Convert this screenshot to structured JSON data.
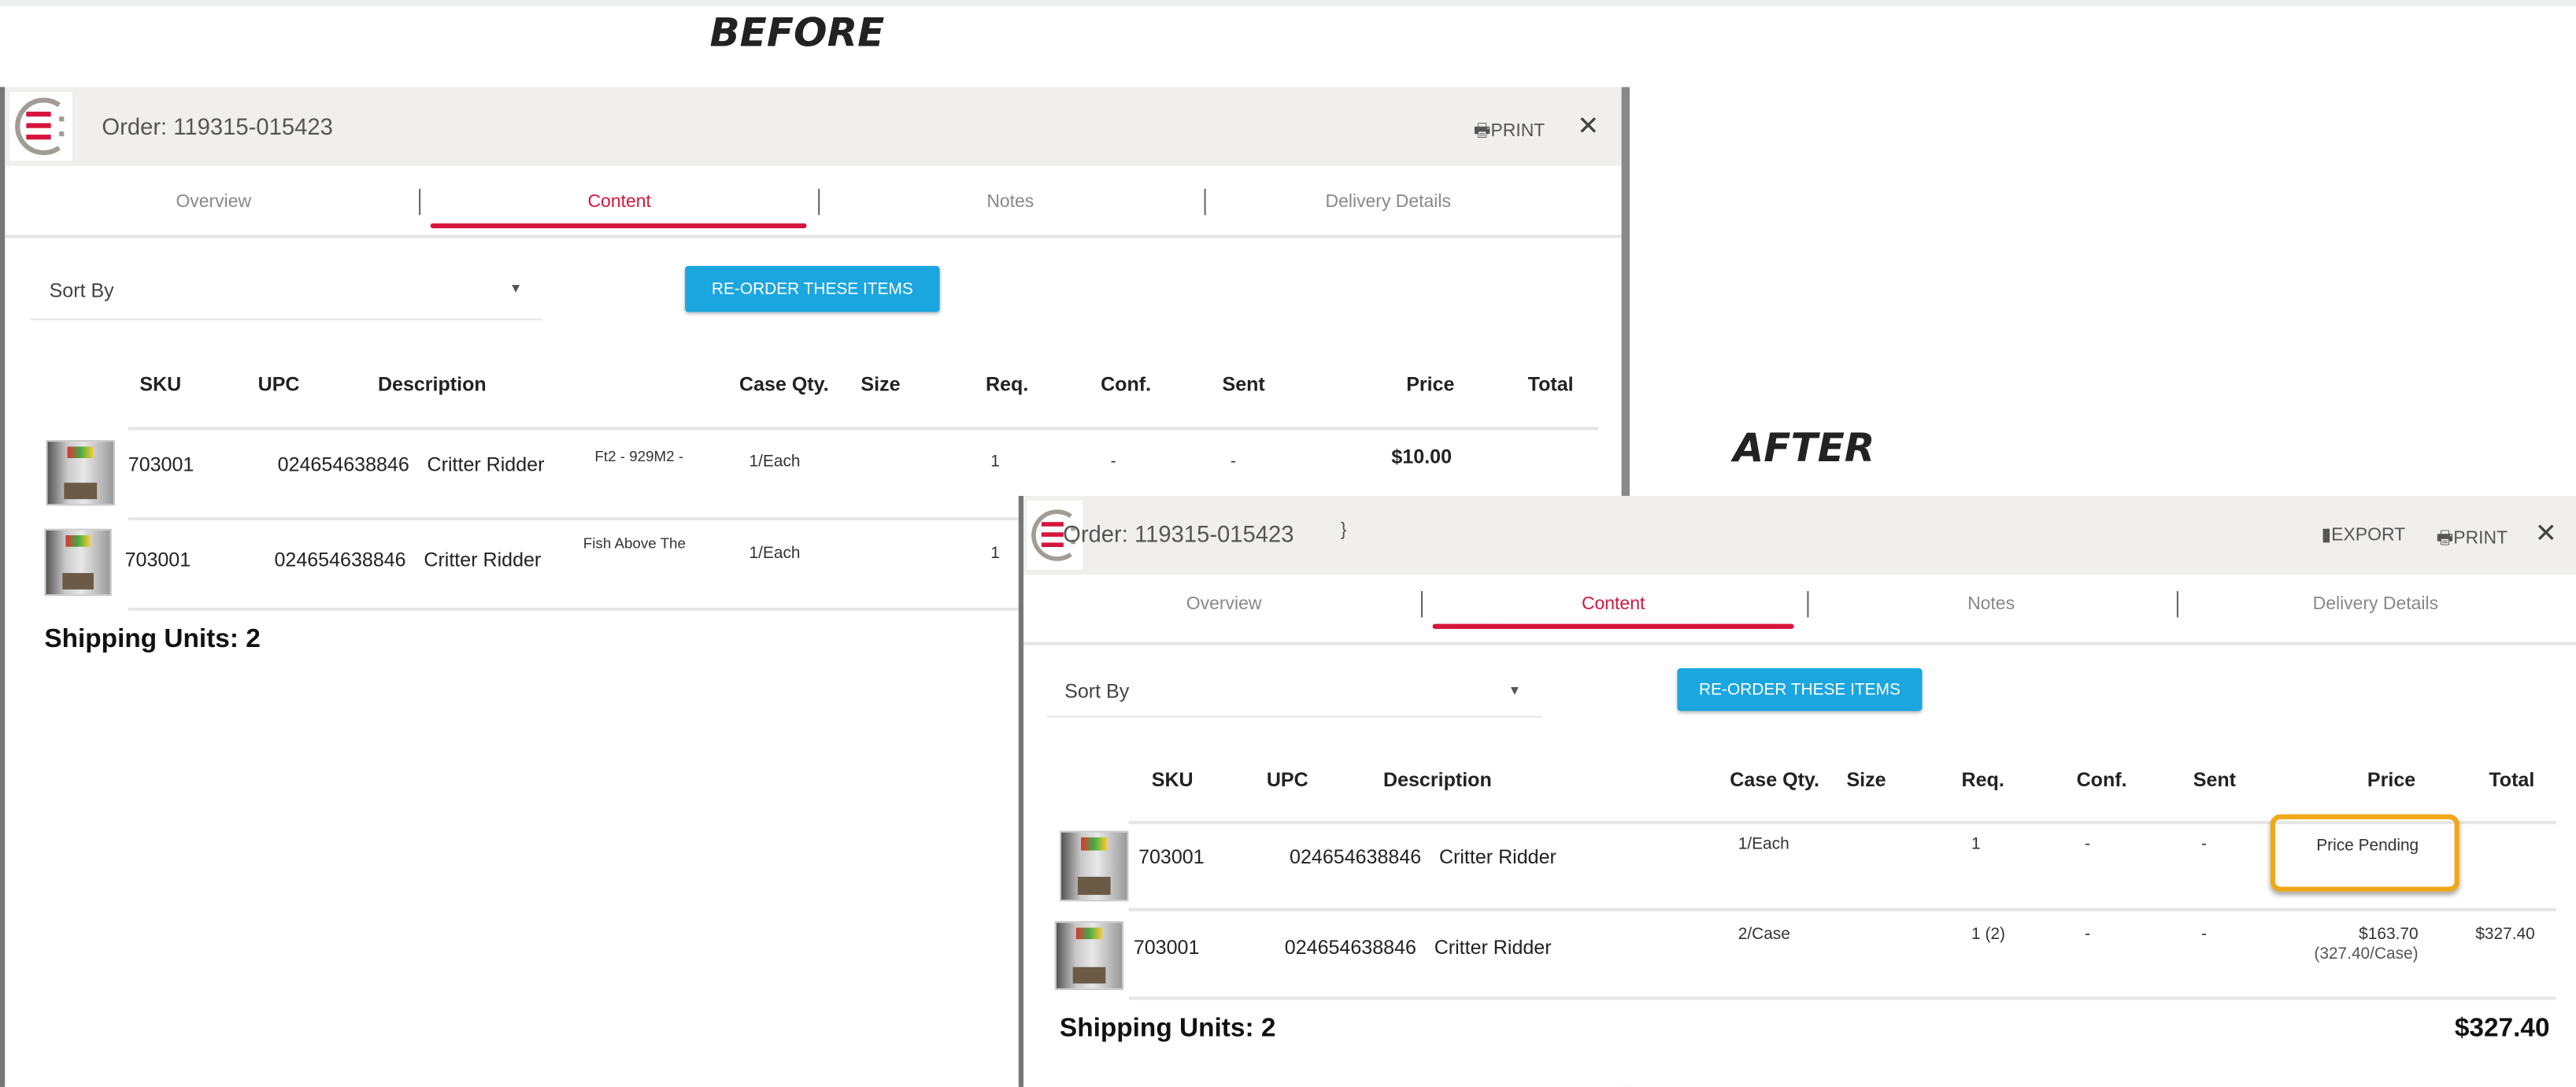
{
  "labels": {
    "before": "BEFORE",
    "after": "AFTER"
  },
  "colors": {
    "accent": "#d6143c",
    "button": "#1ba6e0",
    "highlight": "#f0a818",
    "header_bg": "#f0efee"
  },
  "before": {
    "title": "Order: 119315-015423",
    "print": "PRINT",
    "close_icon": "close-icon",
    "tabs": [
      "Overview",
      "Content",
      "Notes",
      "Delivery Details"
    ],
    "active_tab": "Content",
    "sort_by": "Sort By",
    "reorder": "RE-ORDER THESE ITEMS",
    "columns": [
      "SKU",
      "UPC",
      "Description",
      "Case Qty.",
      "Size",
      "Req.",
      "Conf.",
      "Sent",
      "Price",
      "Total"
    ],
    "rows": [
      {
        "sku": "703001",
        "upc": "024654638846",
        "description": "Critter Ridder",
        "detail": "Ft2 - 929M2 -",
        "case_qty": "1/Each",
        "req": "1",
        "conf": "-",
        "sent": "-",
        "price": "$10.00"
      },
      {
        "sku": "703001",
        "upc": "024654638846",
        "description": "Critter Ridder",
        "detail": "Fish Above The",
        "case_qty": "1/Each",
        "req": "1"
      }
    ],
    "shipping_units": "Shipping Units: 2"
  },
  "after": {
    "title": "Order: 119315-015423",
    "stray": "}",
    "export": "EXPORT",
    "print": "PRINT",
    "tabs": [
      "Overview",
      "Content",
      "Notes",
      "Delivery Details"
    ],
    "active_tab": "Content",
    "sort_by": "Sort By",
    "reorder": "RE-ORDER THESE ITEMS",
    "columns": [
      "SKU",
      "UPC",
      "Description",
      "Case Qty.",
      "Size",
      "Req.",
      "Conf.",
      "Sent",
      "Price",
      "Total"
    ],
    "rows": [
      {
        "sku": "703001",
        "upc": "024654638846",
        "description": "Critter Ridder",
        "case_qty": "1/Each",
        "req": "1",
        "conf": "-",
        "sent": "-",
        "price": "Price Pending",
        "total": ""
      },
      {
        "sku": "703001",
        "upc": "024654638846",
        "description": "Critter Ridder",
        "case_qty": "2/Case",
        "req": "1 (2)",
        "conf": "-",
        "sent": "-",
        "price": "$163.70",
        "price_sub": "(327.40/Case)",
        "total": "$327.40"
      }
    ],
    "shipping_units": "Shipping Units: 2",
    "grand_total": "$327.40"
  }
}
